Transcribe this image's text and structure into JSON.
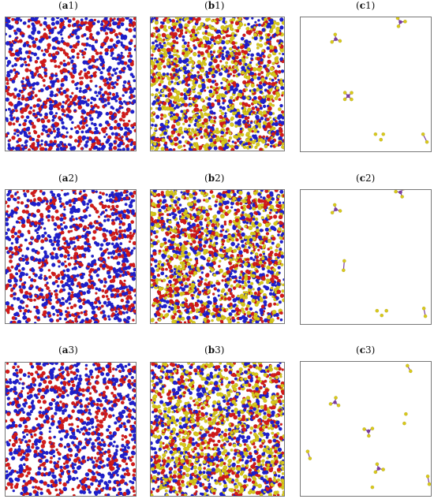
{
  "figure": {
    "rows": [
      {
        "labels": {
          "a": {
            "open": "(",
            "letter": "a",
            "num": "1",
            "close": ")"
          },
          "b": {
            "open": "(",
            "letter": "b",
            "num": "1",
            "close": ")"
          },
          "c": {
            "open": "(",
            "letter": "c",
            "num": "1",
            "close": ")"
          }
        }
      },
      {
        "labels": {
          "a": {
            "open": "(",
            "letter": "a",
            "num": "2",
            "close": ")"
          },
          "b": {
            "open": "(",
            "letter": "b",
            "num": "2",
            "close": ")"
          },
          "c": {
            "open": "(",
            "letter": "c",
            "num": "2",
            "close": ")"
          }
        }
      },
      {
        "labels": {
          "a": {
            "open": "(",
            "letter": "a",
            "num": "3",
            "close": ")"
          },
          "b": {
            "open": "(",
            "letter": "b",
            "num": "3",
            "close": ")"
          },
          "c": {
            "open": "(",
            "letter": "c",
            "num": "3",
            "close": ")"
          }
        }
      }
    ],
    "colors": {
      "blue": "#1f1fd0",
      "red": "#d41a1a",
      "yellow": "#d8c81a",
      "purple": "#7a3aa0",
      "white": "#ffffff",
      "border": "#777777"
    }
  }
}
